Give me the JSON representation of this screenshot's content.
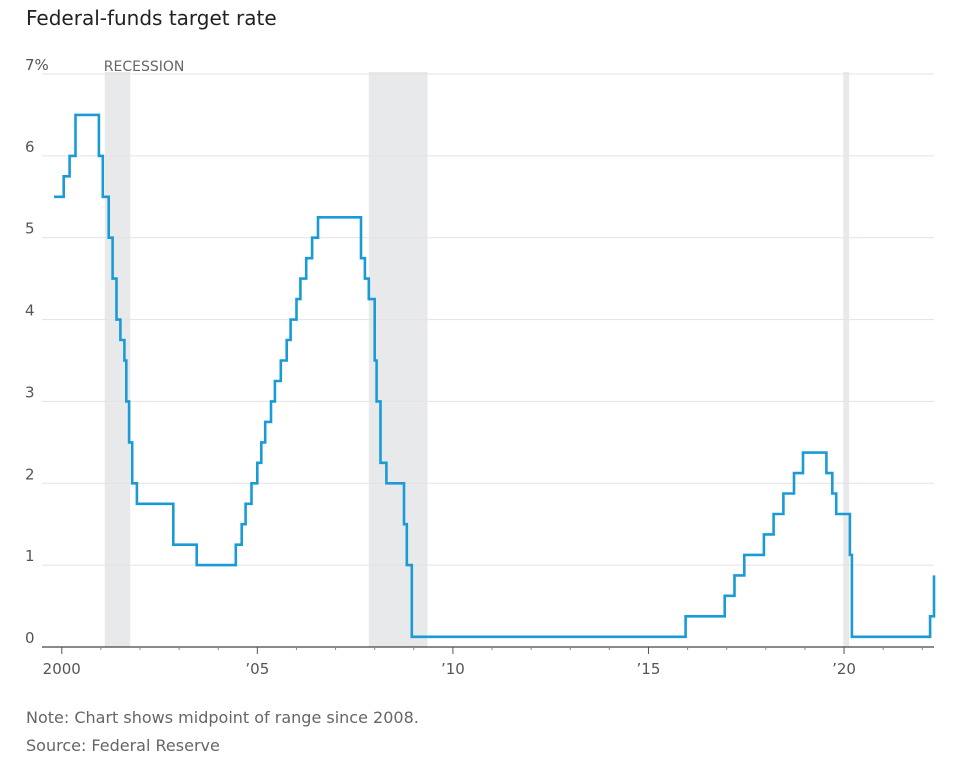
{
  "chart_data": {
    "type": "line",
    "title": "Federal-funds target rate",
    "xlabel": "",
    "ylabel": "",
    "xlim": [
      1999.75,
      2022.3
    ],
    "ylim": [
      0,
      7
    ],
    "y_ticks": [
      {
        "value": 0,
        "label": "0"
      },
      {
        "value": 1,
        "label": "1"
      },
      {
        "value": 2,
        "label": "2"
      },
      {
        "value": 3,
        "label": "3"
      },
      {
        "value": 4,
        "label": "4"
      },
      {
        "value": 5,
        "label": "5"
      },
      {
        "value": 6,
        "label": "6"
      },
      {
        "value": 7,
        "label": "7%"
      }
    ],
    "x_ticks": [
      {
        "value": 2000,
        "label": "2000"
      },
      {
        "value": 2005,
        "label": "’05"
      },
      {
        "value": 2010,
        "label": "’10"
      },
      {
        "value": 2015,
        "label": "’15"
      },
      {
        "value": 2020,
        "label": "’20"
      }
    ],
    "x_minor_ticks": [
      2001,
      2002,
      2003,
      2004,
      2006,
      2007,
      2008,
      2009,
      2011,
      2012,
      2013,
      2014,
      2016,
      2017,
      2018,
      2019,
      2021,
      2022
    ],
    "grid": true,
    "recession_label": "RECESSION",
    "recessions": [
      {
        "start": 2001.1,
        "end": 2001.75
      },
      {
        "start": 2007.85,
        "end": 2009.35
      },
      {
        "start": 2019.98,
        "end": 2020.13
      }
    ],
    "series": [
      {
        "name": "Federal-funds target rate",
        "step": true,
        "color": "#1a9bd7",
        "x": [
          1999.8,
          2000.05,
          2000.2,
          2000.35,
          2000.95,
          2001.05,
          2001.2,
          2001.3,
          2001.4,
          2001.5,
          2001.6,
          2001.65,
          2001.72,
          2001.8,
          2001.92,
          2002.85,
          2003.45,
          2004.45,
          2004.6,
          2004.7,
          2004.85,
          2005.0,
          2005.1,
          2005.2,
          2005.35,
          2005.45,
          2005.6,
          2005.75,
          2005.85,
          2006.0,
          2006.1,
          2006.25,
          2006.4,
          2006.55,
          2007.65,
          2007.75,
          2007.85,
          2008.0,
          2008.05,
          2008.15,
          2008.3,
          2008.75,
          2008.82,
          2008.95,
          2015.95,
          2016.95,
          2017.2,
          2017.45,
          2017.95,
          2018.2,
          2018.45,
          2018.72,
          2018.95,
          2019.55,
          2019.7,
          2019.8,
          2020.15,
          2020.2,
          2022.2,
          2022.3
        ],
        "values": [
          5.5,
          5.75,
          6.0,
          6.5,
          6.0,
          5.5,
          5.0,
          4.5,
          4.0,
          3.75,
          3.5,
          3.0,
          2.5,
          2.0,
          1.75,
          1.25,
          1.0,
          1.25,
          1.5,
          1.75,
          2.0,
          2.25,
          2.5,
          2.75,
          3.0,
          3.25,
          3.5,
          3.75,
          4.0,
          4.25,
          4.5,
          4.75,
          5.0,
          5.25,
          4.75,
          4.5,
          4.25,
          3.5,
          3.0,
          2.25,
          2.0,
          1.5,
          1.0,
          0.125,
          0.375,
          0.625,
          0.875,
          1.125,
          1.375,
          1.625,
          1.875,
          2.125,
          2.375,
          2.125,
          1.875,
          1.625,
          1.125,
          0.125,
          0.375,
          0.875
        ]
      }
    ]
  },
  "notes": {
    "line1": "Note: Chart shows midpoint of range since 2008.",
    "line2": "Source: Federal Reserve"
  }
}
